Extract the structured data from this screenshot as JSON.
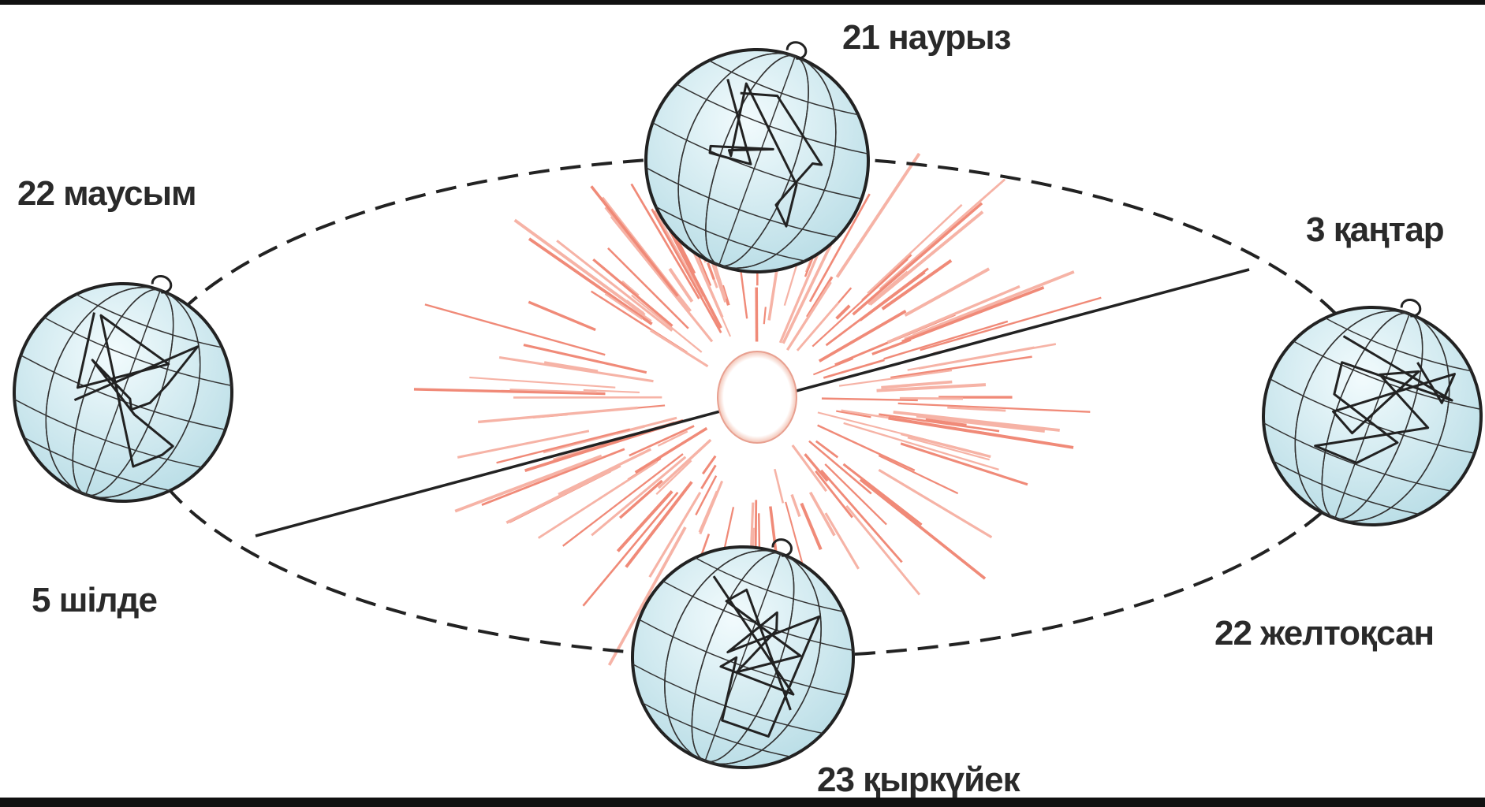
{
  "labels": {
    "march": "21 наурыз",
    "june": "22 маусым",
    "january": "3 қаңтар",
    "july": "5 шілде",
    "december": "22 желтоқсан",
    "september": "23 қыркүйек"
  }
}
